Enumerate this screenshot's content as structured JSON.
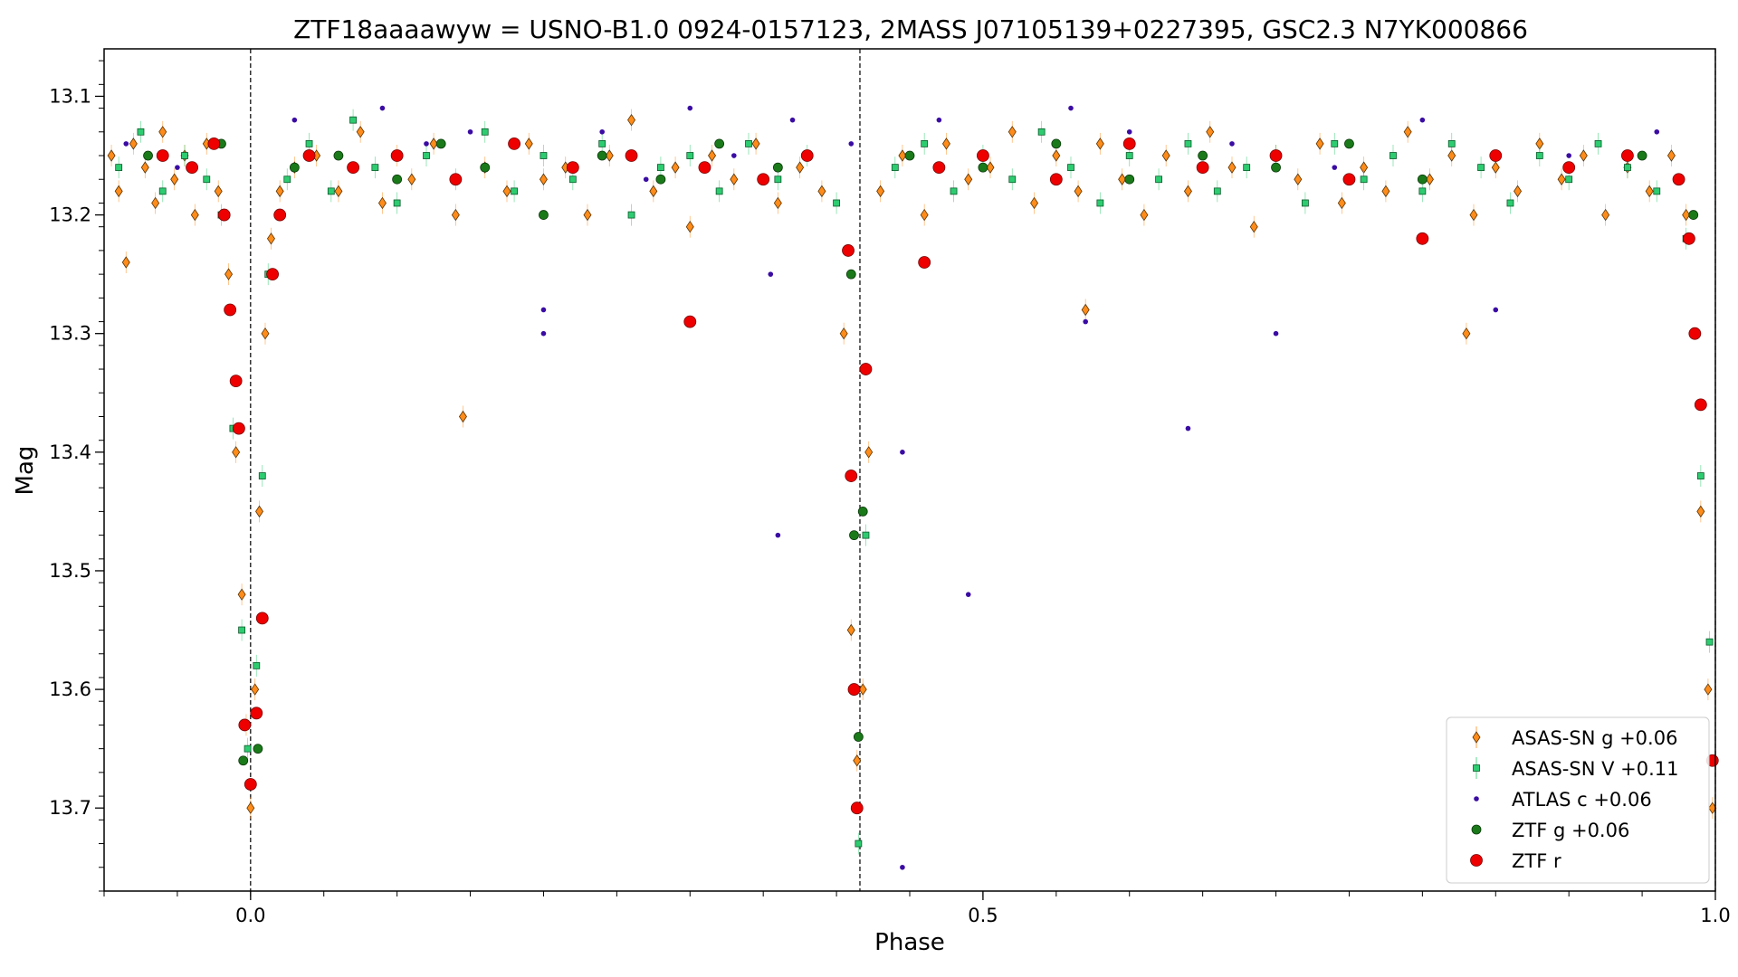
{
  "chart_data": {
    "type": "scatter",
    "title": "ZTF18aaaawyw = USNO-B1.0 0924-0157123, 2MASS J07105139+0227395, GSC2.3 N7YK000866",
    "xlabel": "Phase",
    "ylabel": "Mag",
    "xlim": [
      -0.1,
      1.0
    ],
    "ylim": [
      13.77,
      13.06
    ],
    "y_inverted": true,
    "grid": false,
    "legend_position": "lower-right",
    "x_ticks": [
      {
        "value": 0.0,
        "label": "0.0"
      },
      {
        "value": 0.5,
        "label": "0.5"
      },
      {
        "value": 1.0,
        "label": "1.0"
      }
    ],
    "y_ticks": [
      {
        "value": 13.1,
        "label": "13.1"
      },
      {
        "value": 13.2,
        "label": "13.2"
      },
      {
        "value": 13.3,
        "label": "13.3"
      },
      {
        "value": 13.4,
        "label": "13.4"
      },
      {
        "value": 13.5,
        "label": "13.5"
      },
      {
        "value": 13.6,
        "label": "13.6"
      },
      {
        "value": 13.7,
        "label": "13.7"
      }
    ],
    "vertical_lines": [
      0.0,
      0.416,
      1.0
    ],
    "eclipses": {
      "primary": {
        "phase": 0.0,
        "depth_mag": 13.69
      },
      "secondary": {
        "phase": 0.416,
        "depth_mag": 13.7
      },
      "baseline_mag": 13.16
    },
    "series": [
      {
        "name": "ASAS-SN g +0.06",
        "marker": "diamond",
        "color": "#ff8c1a",
        "points": [
          [
            -0.095,
            13.15
          ],
          [
            -0.09,
            13.18
          ],
          [
            -0.085,
            13.24
          ],
          [
            -0.08,
            13.14
          ],
          [
            -0.072,
            13.16
          ],
          [
            -0.065,
            13.19
          ],
          [
            -0.06,
            13.13
          ],
          [
            -0.052,
            13.17
          ],
          [
            -0.045,
            13.15
          ],
          [
            -0.038,
            13.2
          ],
          [
            -0.03,
            13.14
          ],
          [
            -0.022,
            13.18
          ],
          [
            -0.015,
            13.25
          ],
          [
            -0.01,
            13.4
          ],
          [
            -0.006,
            13.52
          ],
          [
            -0.003,
            13.63
          ],
          [
            0.0,
            13.7
          ],
          [
            0.003,
            13.6
          ],
          [
            0.006,
            13.45
          ],
          [
            0.01,
            13.3
          ],
          [
            0.014,
            13.22
          ],
          [
            0.02,
            13.18
          ],
          [
            0.03,
            13.16
          ],
          [
            0.045,
            13.15
          ],
          [
            0.06,
            13.18
          ],
          [
            0.075,
            13.13
          ],
          [
            0.09,
            13.19
          ],
          [
            0.1,
            13.15
          ],
          [
            0.11,
            13.17
          ],
          [
            0.125,
            13.14
          ],
          [
            0.14,
            13.2
          ],
          [
            0.145,
            13.37
          ],
          [
            0.16,
            13.16
          ],
          [
            0.175,
            13.18
          ],
          [
            0.19,
            13.14
          ],
          [
            0.2,
            13.17
          ],
          [
            0.215,
            13.16
          ],
          [
            0.23,
            13.2
          ],
          [
            0.245,
            13.15
          ],
          [
            0.26,
            13.12
          ],
          [
            0.275,
            13.18
          ],
          [
            0.29,
            13.16
          ],
          [
            0.3,
            13.21
          ],
          [
            0.315,
            13.15
          ],
          [
            0.33,
            13.17
          ],
          [
            0.345,
            13.14
          ],
          [
            0.36,
            13.19
          ],
          [
            0.375,
            13.16
          ],
          [
            0.39,
            13.18
          ],
          [
            0.405,
            13.3
          ],
          [
            0.41,
            13.55
          ],
          [
            0.414,
            13.66
          ],
          [
            0.418,
            13.6
          ],
          [
            0.422,
            13.4
          ],
          [
            0.43,
            13.18
          ],
          [
            0.445,
            13.15
          ],
          [
            0.46,
            13.2
          ],
          [
            0.475,
            13.14
          ],
          [
            0.49,
            13.17
          ],
          [
            0.505,
            13.16
          ],
          [
            0.52,
            13.13
          ],
          [
            0.535,
            13.19
          ],
          [
            0.55,
            13.15
          ],
          [
            0.565,
            13.18
          ],
          [
            0.57,
            13.28
          ],
          [
            0.58,
            13.14
          ],
          [
            0.595,
            13.17
          ],
          [
            0.61,
            13.2
          ],
          [
            0.625,
            13.15
          ],
          [
            0.64,
            13.18
          ],
          [
            0.655,
            13.13
          ],
          [
            0.67,
            13.16
          ],
          [
            0.685,
            13.21
          ],
          [
            0.7,
            13.15
          ],
          [
            0.715,
            13.17
          ],
          [
            0.73,
            13.14
          ],
          [
            0.745,
            13.19
          ],
          [
            0.76,
            13.16
          ],
          [
            0.775,
            13.18
          ],
          [
            0.79,
            13.13
          ],
          [
            0.805,
            13.17
          ],
          [
            0.82,
            13.15
          ],
          [
            0.83,
            13.3
          ],
          [
            0.835,
            13.2
          ],
          [
            0.85,
            13.16
          ],
          [
            0.865,
            13.18
          ],
          [
            0.88,
            13.14
          ],
          [
            0.895,
            13.17
          ],
          [
            0.91,
            13.15
          ],
          [
            0.925,
            13.2
          ],
          [
            0.94,
            13.16
          ],
          [
            0.955,
            13.18
          ],
          [
            0.97,
            13.15
          ],
          [
            0.98,
            13.2
          ],
          [
            0.99,
            13.45
          ],
          [
            0.995,
            13.6
          ],
          [
            0.998,
            13.7
          ]
        ]
      },
      {
        "name": "ASAS-SN V +0.11",
        "marker": "square",
        "color": "#2ecc71",
        "points": [
          [
            -0.09,
            13.16
          ],
          [
            -0.075,
            13.13
          ],
          [
            -0.06,
            13.18
          ],
          [
            -0.045,
            13.15
          ],
          [
            -0.03,
            13.17
          ],
          [
            -0.02,
            13.2
          ],
          [
            -0.012,
            13.38
          ],
          [
            -0.006,
            13.55
          ],
          [
            -0.002,
            13.65
          ],
          [
            0.004,
            13.58
          ],
          [
            0.008,
            13.42
          ],
          [
            0.012,
            13.25
          ],
          [
            0.025,
            13.17
          ],
          [
            0.04,
            13.14
          ],
          [
            0.055,
            13.18
          ],
          [
            0.07,
            13.12
          ],
          [
            0.085,
            13.16
          ],
          [
            0.1,
            13.19
          ],
          [
            0.12,
            13.15
          ],
          [
            0.14,
            13.17
          ],
          [
            0.16,
            13.13
          ],
          [
            0.18,
            13.18
          ],
          [
            0.2,
            13.15
          ],
          [
            0.22,
            13.17
          ],
          [
            0.24,
            13.14
          ],
          [
            0.26,
            13.2
          ],
          [
            0.28,
            13.16
          ],
          [
            0.3,
            13.15
          ],
          [
            0.32,
            13.18
          ],
          [
            0.34,
            13.14
          ],
          [
            0.36,
            13.17
          ],
          [
            0.38,
            13.15
          ],
          [
            0.4,
            13.19
          ],
          [
            0.415,
            13.73
          ],
          [
            0.42,
            13.47
          ],
          [
            0.44,
            13.16
          ],
          [
            0.46,
            13.14
          ],
          [
            0.48,
            13.18
          ],
          [
            0.5,
            13.15
          ],
          [
            0.52,
            13.17
          ],
          [
            0.54,
            13.13
          ],
          [
            0.56,
            13.16
          ],
          [
            0.58,
            13.19
          ],
          [
            0.6,
            13.15
          ],
          [
            0.62,
            13.17
          ],
          [
            0.64,
            13.14
          ],
          [
            0.66,
            13.18
          ],
          [
            0.68,
            13.16
          ],
          [
            0.7,
            13.15
          ],
          [
            0.72,
            13.19
          ],
          [
            0.74,
            13.14
          ],
          [
            0.76,
            13.17
          ],
          [
            0.78,
            13.15
          ],
          [
            0.8,
            13.18
          ],
          [
            0.82,
            13.14
          ],
          [
            0.84,
            13.16
          ],
          [
            0.86,
            13.19
          ],
          [
            0.88,
            13.15
          ],
          [
            0.9,
            13.17
          ],
          [
            0.92,
            13.14
          ],
          [
            0.94,
            13.16
          ],
          [
            0.96,
            13.18
          ],
          [
            0.98,
            13.22
          ],
          [
            0.99,
            13.42
          ],
          [
            0.996,
            13.56
          ]
        ]
      },
      {
        "name": "ATLAS c +0.06",
        "marker": "circle-small",
        "color": "#3a0ca3",
        "points": [
          [
            -0.085,
            13.14
          ],
          [
            -0.05,
            13.16
          ],
          [
            0.03,
            13.12
          ],
          [
            0.06,
            13.15
          ],
          [
            0.09,
            13.11
          ],
          [
            0.12,
            13.14
          ],
          [
            0.15,
            13.13
          ],
          [
            0.2,
            13.28
          ],
          [
            0.2,
            13.3
          ],
          [
            0.24,
            13.13
          ],
          [
            0.27,
            13.17
          ],
          [
            0.3,
            13.11
          ],
          [
            0.33,
            13.15
          ],
          [
            0.355,
            13.25
          ],
          [
            0.37,
            13.12
          ],
          [
            0.36,
            13.47
          ],
          [
            0.41,
            13.14
          ],
          [
            0.445,
            13.4
          ],
          [
            0.445,
            13.75
          ],
          [
            0.47,
            13.12
          ],
          [
            0.49,
            13.52
          ],
          [
            0.5,
            13.15
          ],
          [
            0.56,
            13.11
          ],
          [
            0.57,
            13.29
          ],
          [
            0.6,
            13.13
          ],
          [
            0.64,
            13.38
          ],
          [
            0.67,
            13.14
          ],
          [
            0.7,
            13.3
          ],
          [
            0.74,
            13.16
          ],
          [
            0.8,
            13.12
          ],
          [
            0.85,
            13.28
          ],
          [
            0.9,
            13.15
          ],
          [
            0.96,
            13.13
          ]
        ]
      },
      {
        "name": "ZTF g +0.06",
        "marker": "circle",
        "color": "#1a7a1a",
        "points": [
          [
            -0.07,
            13.15
          ],
          [
            -0.04,
            13.16
          ],
          [
            -0.02,
            13.14
          ],
          [
            -0.005,
            13.66
          ],
          [
            0.005,
            13.65
          ],
          [
            0.03,
            13.16
          ],
          [
            0.06,
            13.15
          ],
          [
            0.1,
            13.17
          ],
          [
            0.13,
            13.14
          ],
          [
            0.16,
            13.16
          ],
          [
            0.2,
            13.2
          ],
          [
            0.24,
            13.15
          ],
          [
            0.28,
            13.17
          ],
          [
            0.32,
            13.14
          ],
          [
            0.36,
            13.16
          ],
          [
            0.41,
            13.25
          ],
          [
            0.412,
            13.47
          ],
          [
            0.415,
            13.64
          ],
          [
            0.418,
            13.45
          ],
          [
            0.45,
            13.15
          ],
          [
            0.5,
            13.16
          ],
          [
            0.55,
            13.14
          ],
          [
            0.6,
            13.17
          ],
          [
            0.65,
            13.15
          ],
          [
            0.7,
            13.16
          ],
          [
            0.75,
            13.14
          ],
          [
            0.8,
            13.17
          ],
          [
            0.85,
            13.15
          ],
          [
            0.9,
            13.16
          ],
          [
            0.95,
            13.15
          ],
          [
            0.985,
            13.2
          ]
        ]
      },
      {
        "name": "ZTF r",
        "marker": "circle-large",
        "color": "#ee0000",
        "points": [
          [
            -0.06,
            13.15
          ],
          [
            -0.04,
            13.16
          ],
          [
            -0.025,
            13.14
          ],
          [
            -0.018,
            13.2
          ],
          [
            -0.014,
            13.28
          ],
          [
            -0.01,
            13.34
          ],
          [
            -0.008,
            13.38
          ],
          [
            -0.004,
            13.63
          ],
          [
            0.0,
            13.68
          ],
          [
            0.004,
            13.62
          ],
          [
            0.008,
            13.54
          ],
          [
            0.015,
            13.25
          ],
          [
            0.02,
            13.2
          ],
          [
            0.04,
            13.15
          ],
          [
            0.07,
            13.16
          ],
          [
            0.1,
            13.15
          ],
          [
            0.14,
            13.17
          ],
          [
            0.18,
            13.14
          ],
          [
            0.22,
            13.16
          ],
          [
            0.26,
            13.15
          ],
          [
            0.3,
            13.29
          ],
          [
            0.31,
            13.16
          ],
          [
            0.35,
            13.17
          ],
          [
            0.38,
            13.15
          ],
          [
            0.408,
            13.23
          ],
          [
            0.41,
            13.42
          ],
          [
            0.412,
            13.6
          ],
          [
            0.414,
            13.7
          ],
          [
            0.42,
            13.33
          ],
          [
            0.46,
            13.24
          ],
          [
            0.47,
            13.16
          ],
          [
            0.5,
            13.15
          ],
          [
            0.55,
            13.17
          ],
          [
            0.6,
            13.14
          ],
          [
            0.65,
            13.16
          ],
          [
            0.7,
            13.15
          ],
          [
            0.75,
            13.17
          ],
          [
            0.8,
            13.22
          ],
          [
            0.85,
            13.15
          ],
          [
            0.9,
            13.16
          ],
          [
            0.94,
            13.15
          ],
          [
            0.975,
            13.17
          ],
          [
            0.982,
            13.22
          ],
          [
            0.986,
            13.3
          ],
          [
            0.99,
            13.36
          ],
          [
            0.998,
            13.66
          ]
        ]
      }
    ]
  }
}
